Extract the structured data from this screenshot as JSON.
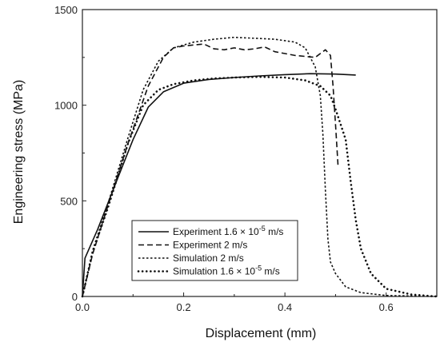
{
  "chart_data": {
    "type": "line",
    "xlabel": "Displacement (mm)",
    "ylabel": "Engineering stress (MPa)",
    "xlim": [
      0,
      0.7
    ],
    "ylim": [
      0,
      1500
    ],
    "x_ticks": [
      0.0,
      0.2,
      0.4,
      0.6
    ],
    "x_tick_labels": [
      "0.0",
      "0.2",
      "0.4",
      "0.6"
    ],
    "y_ticks": [
      0,
      500,
      1000,
      1500
    ],
    "y_tick_labels": [
      "0",
      "500",
      "1000",
      "1500"
    ],
    "grid": false,
    "legend_position": "bottom-left",
    "series": [
      {
        "name_prefix": "Experiment 1.6 × 10",
        "name_exp": "-5",
        "name_suffix": " m/s",
        "style": "solid",
        "points": [
          [
            0,
            0
          ],
          [
            0.005,
            200
          ],
          [
            0.03,
            350
          ],
          [
            0.07,
            620
          ],
          [
            0.1,
            820
          ],
          [
            0.13,
            990
          ],
          [
            0.16,
            1070
          ],
          [
            0.2,
            1115
          ],
          [
            0.25,
            1135
          ],
          [
            0.3,
            1145
          ],
          [
            0.35,
            1153
          ],
          [
            0.4,
            1160
          ],
          [
            0.45,
            1165
          ],
          [
            0.5,
            1163
          ],
          [
            0.54,
            1158
          ]
        ]
      },
      {
        "name_prefix": "Experiment  2 m/s",
        "name_exp": "",
        "name_suffix": "",
        "style": "dash",
        "points": [
          [
            0,
            0
          ],
          [
            0.02,
            220
          ],
          [
            0.05,
            470
          ],
          [
            0.09,
            800
          ],
          [
            0.13,
            1100
          ],
          [
            0.16,
            1250
          ],
          [
            0.18,
            1300
          ],
          [
            0.2,
            1310
          ],
          [
            0.22,
            1315
          ],
          [
            0.24,
            1320
          ],
          [
            0.26,
            1295
          ],
          [
            0.28,
            1290
          ],
          [
            0.3,
            1300
          ],
          [
            0.32,
            1290
          ],
          [
            0.34,
            1295
          ],
          [
            0.36,
            1305
          ],
          [
            0.38,
            1280
          ],
          [
            0.4,
            1270
          ],
          [
            0.42,
            1260
          ],
          [
            0.44,
            1255
          ],
          [
            0.46,
            1250
          ],
          [
            0.47,
            1270
          ],
          [
            0.48,
            1290
          ],
          [
            0.49,
            1260
          ],
          [
            0.495,
            1100
          ],
          [
            0.5,
            900
          ],
          [
            0.505,
            680
          ]
        ]
      },
      {
        "name_prefix": "Simulation  2 m/s",
        "name_exp": "",
        "name_suffix": "",
        "style": "dot-fine",
        "points": [
          [
            0,
            0
          ],
          [
            0.02,
            240
          ],
          [
            0.05,
            480
          ],
          [
            0.09,
            830
          ],
          [
            0.12,
            1080
          ],
          [
            0.15,
            1230
          ],
          [
            0.18,
            1300
          ],
          [
            0.22,
            1330
          ],
          [
            0.26,
            1345
          ],
          [
            0.3,
            1355
          ],
          [
            0.34,
            1350
          ],
          [
            0.38,
            1345
          ],
          [
            0.42,
            1330
          ],
          [
            0.44,
            1300
          ],
          [
            0.46,
            1200
          ],
          [
            0.47,
            1050
          ],
          [
            0.475,
            850
          ],
          [
            0.48,
            550
          ],
          [
            0.485,
            300
          ],
          [
            0.49,
            180
          ],
          [
            0.5,
            120
          ],
          [
            0.52,
            50
          ],
          [
            0.55,
            20
          ],
          [
            0.6,
            5
          ],
          [
            0.7,
            0
          ]
        ]
      },
      {
        "name_prefix": "Simulation  1.6 × 10",
        "name_exp": "-5",
        "name_suffix": " m/s",
        "style": "dot-coarse",
        "points": [
          [
            0,
            0
          ],
          [
            0.02,
            230
          ],
          [
            0.05,
            460
          ],
          [
            0.09,
            800
          ],
          [
            0.12,
            1000
          ],
          [
            0.15,
            1080
          ],
          [
            0.18,
            1110
          ],
          [
            0.22,
            1130
          ],
          [
            0.26,
            1140
          ],
          [
            0.3,
            1145
          ],
          [
            0.35,
            1148
          ],
          [
            0.4,
            1145
          ],
          [
            0.44,
            1130
          ],
          [
            0.47,
            1100
          ],
          [
            0.49,
            1050
          ],
          [
            0.5,
            980
          ],
          [
            0.51,
            900
          ],
          [
            0.52,
            820
          ],
          [
            0.53,
            600
          ],
          [
            0.54,
            400
          ],
          [
            0.55,
            250
          ],
          [
            0.57,
            120
          ],
          [
            0.6,
            40
          ],
          [
            0.65,
            10
          ],
          [
            0.7,
            0
          ]
        ]
      }
    ]
  }
}
